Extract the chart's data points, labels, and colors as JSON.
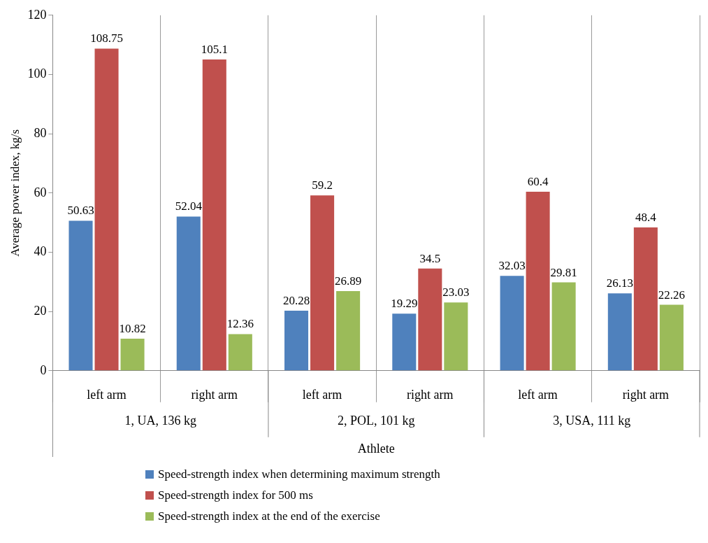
{
  "chart_data": {
    "type": "bar",
    "xlabel": "Athlete",
    "ylabel": "Average power index, kg/s",
    "categories": [
      "left arm",
      "right arm",
      "left arm",
      "right arm",
      "left arm",
      "right arm"
    ],
    "series": [
      {
        "name": "Speed-strength index when determining maximum strength",
        "color": "#4f81bd",
        "values": [
          50.63,
          52.04,
          20.28,
          19.29,
          32.03,
          26.13
        ]
      },
      {
        "name": "Speed-strength index for 500 ms",
        "color": "#c0504d",
        "values": [
          108.75,
          105.1,
          59.2,
          34.5,
          60.4,
          48.4
        ]
      },
      {
        "name": "Speed-strength index at the end of the exercise",
        "color": "#9bbb59",
        "values": [
          10.82,
          12.36,
          26.89,
          23.03,
          29.81,
          22.26
        ]
      }
    ],
    "annotations": [
      "1, UA, 136 kg",
      "2, POL, 101 kg",
      "3, USA, 111 kg"
    ],
    "ylim": [
      0,
      120
    ],
    "yticks": [
      0,
      20,
      40,
      60,
      80,
      100,
      120
    ],
    "grid": "x",
    "legend": "bottom",
    "data_labels": true
  }
}
